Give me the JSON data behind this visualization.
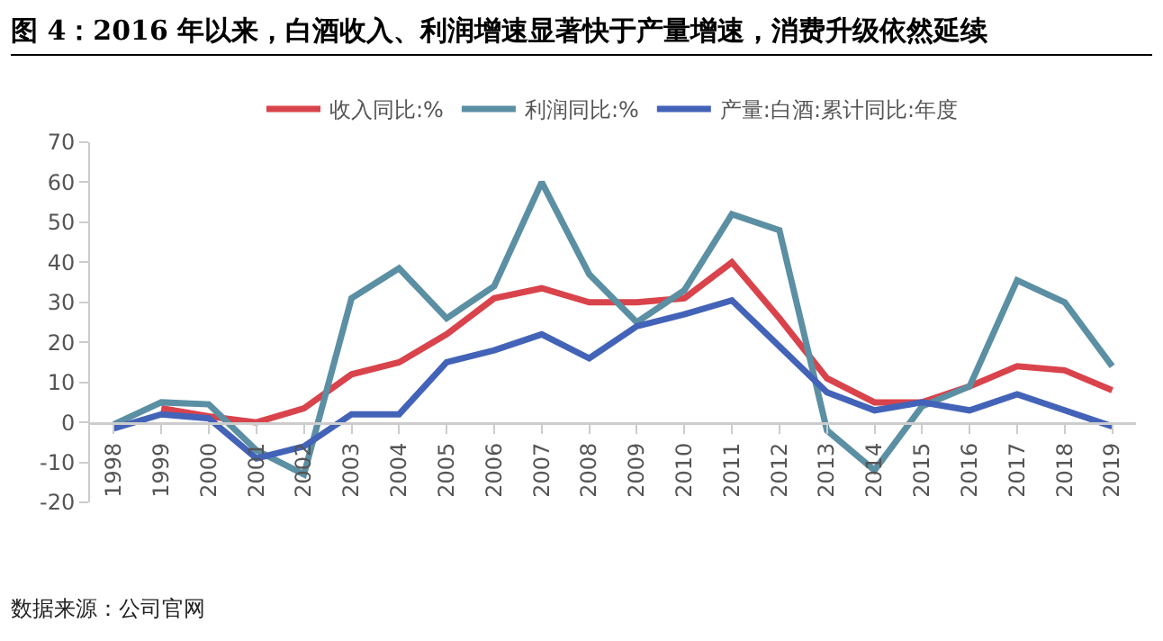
{
  "chart_data": {
    "type": "line",
    "title": "图 4：2016 年以来，白酒收入、利润增速显著快于产量增速，消费升级依然延续",
    "categories": [
      "1998",
      "1999",
      "2000",
      "2001",
      "2002",
      "2003",
      "2004",
      "2005",
      "2006",
      "2007",
      "2008",
      "2009",
      "2010",
      "2011",
      "2012",
      "2013",
      "2014",
      "2015",
      "2016",
      "2017",
      "2018",
      "2019"
    ],
    "series": [
      {
        "name": "收入同比:%",
        "color": "#d9434b",
        "values": [
          null,
          3.5,
          1.5,
          0,
          3.5,
          12,
          15,
          22,
          31,
          33.5,
          30,
          30,
          31,
          40,
          26,
          11,
          5,
          5,
          9,
          14,
          13,
          8
        ]
      },
      {
        "name": "利润同比:%",
        "color": "#5b8fa3",
        "values": [
          -0.5,
          5,
          4.5,
          -7,
          -13,
          31,
          38.5,
          26,
          34,
          60,
          37,
          25,
          33,
          52,
          48,
          -2,
          -12,
          4,
          9,
          35.5,
          30,
          14
        ]
      },
      {
        "name": "产量:白酒:累计同比:年度",
        "color": "#4363b8",
        "values": [
          -1.5,
          2,
          1,
          -9,
          -6,
          2,
          2,
          15,
          18,
          22,
          16,
          24,
          27,
          30.5,
          19,
          7.5,
          3,
          5,
          3,
          7,
          3,
          -1
        ]
      }
    ],
    "ylim": [
      -20,
      70
    ],
    "yticks": [
      -20,
      -10,
      0,
      10,
      20,
      30,
      40,
      50,
      60,
      70
    ],
    "grid": false,
    "legend": "top",
    "marker": "none",
    "line_style": "solid",
    "annotations": [
      "数据来源：公司官网"
    ]
  }
}
